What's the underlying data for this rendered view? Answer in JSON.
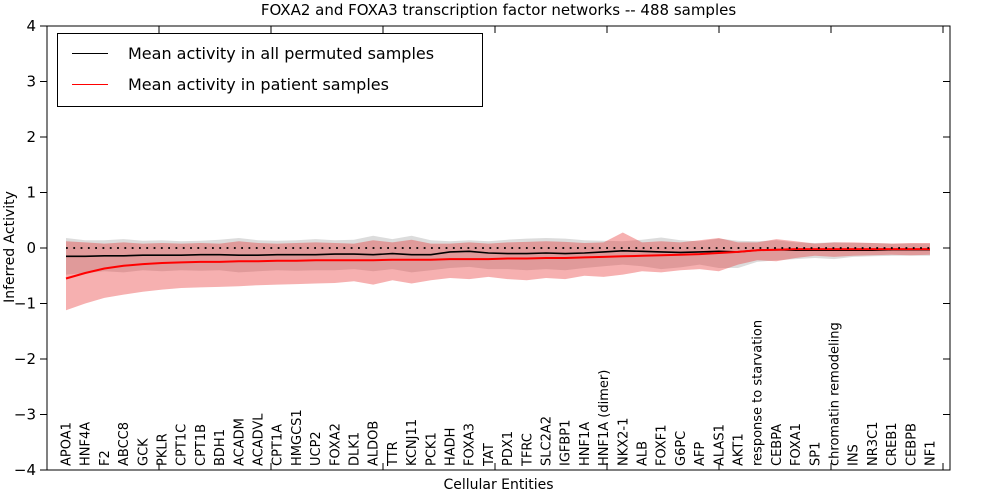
{
  "chart_data": {
    "type": "line",
    "title": "FOXA2 and FOXA3 transcription factor networks -- 488 samples",
    "xlabel": "Cellular Entities",
    "ylabel": "Inferred Activity",
    "ylim": [
      -4,
      4
    ],
    "yticks": [
      4,
      3,
      2,
      1,
      0,
      -1,
      -2,
      -3,
      -4
    ],
    "yticklabels": [
      "4",
      "3",
      "2",
      "1",
      "0",
      "−1",
      "−2",
      "−3",
      "−4"
    ],
    "grid": false,
    "legend_position": "upper left",
    "zero_reference_line": {
      "y": 0,
      "style": "dotted",
      "color": "#000000"
    },
    "categories": [
      "APOA1",
      "HNF4A",
      "F2",
      "ABCC8",
      "GCK",
      "PKLR",
      "CPT1C",
      "CPT1B",
      "BDH1",
      "ACADM",
      "ACADVL",
      "CPT1A",
      "HMGCS1",
      "UCP2",
      "FOXA2",
      "DLK1",
      "ALDOB",
      "TTR",
      "KCNJ11",
      "PCK1",
      "HADH",
      "FOXA3",
      "TAT",
      "PDX1",
      "TFRC",
      "SLC2A2",
      "IGFBP1",
      "HNF1A",
      "HNF1A (dimer)",
      "NKX2-1",
      "ALB",
      "FOXF1",
      "G6PC",
      "AFP",
      "ALAS1",
      "AKT1",
      "response to starvation",
      "CEBPA",
      "FOXA1",
      "SP1",
      "chromatin remodeling",
      "INS",
      "NR3C1",
      "CREB1",
      "CEBPB",
      "NF1"
    ],
    "series": [
      {
        "name": "Mean activity in all permuted samples",
        "color": "#000000",
        "values": [
          -0.15,
          -0.15,
          -0.14,
          -0.14,
          -0.13,
          -0.13,
          -0.13,
          -0.12,
          -0.12,
          -0.13,
          -0.13,
          -0.12,
          -0.12,
          -0.12,
          -0.11,
          -0.11,
          -0.12,
          -0.1,
          -0.12,
          -0.12,
          -0.07,
          -0.06,
          -0.09,
          -0.1,
          -0.1,
          -0.09,
          -0.1,
          -0.09,
          -0.07,
          -0.05,
          -0.06,
          -0.07,
          -0.08,
          -0.07,
          -0.06,
          -0.07,
          -0.04,
          -0.03,
          -0.04,
          -0.04,
          -0.04,
          -0.04,
          -0.04,
          -0.03,
          -0.03,
          -0.03
        ],
        "band_fill": "#9a9a9a",
        "band_opacity": 0.35,
        "band_upper": [
          0.18,
          0.14,
          0.14,
          0.16,
          0.13,
          0.14,
          0.12,
          0.13,
          0.15,
          0.18,
          0.14,
          0.13,
          0.14,
          0.16,
          0.14,
          0.15,
          0.22,
          0.16,
          0.22,
          0.14,
          0.12,
          0.14,
          0.12,
          0.15,
          0.17,
          0.18,
          0.17,
          0.14,
          0.13,
          0.12,
          0.15,
          0.19,
          0.14,
          0.12,
          0.17,
          0.13,
          0.12,
          0.14,
          0.1,
          0.09,
          0.1,
          0.09,
          0.09,
          0.08,
          0.08,
          0.08
        ],
        "band_lower": [
          -0.48,
          -0.45,
          -0.42,
          -0.44,
          -0.4,
          -0.42,
          -0.4,
          -0.41,
          -0.4,
          -0.44,
          -0.42,
          -0.4,
          -0.41,
          -0.4,
          -0.4,
          -0.38,
          -0.42,
          -0.38,
          -0.44,
          -0.4,
          -0.36,
          -0.34,
          -0.38,
          -0.38,
          -0.4,
          -0.38,
          -0.4,
          -0.36,
          -0.33,
          -0.3,
          -0.33,
          -0.38,
          -0.35,
          -0.3,
          -0.36,
          -0.36,
          -0.25,
          -0.22,
          -0.2,
          -0.18,
          -0.2,
          -0.16,
          -0.15,
          -0.14,
          -0.14,
          -0.14
        ]
      },
      {
        "name": "Mean activity in patient samples",
        "color": "#ff0000",
        "values": [
          -0.55,
          -0.45,
          -0.37,
          -0.32,
          -0.29,
          -0.27,
          -0.26,
          -0.25,
          -0.25,
          -0.24,
          -0.24,
          -0.23,
          -0.23,
          -0.22,
          -0.22,
          -0.22,
          -0.22,
          -0.21,
          -0.21,
          -0.21,
          -0.2,
          -0.2,
          -0.2,
          -0.19,
          -0.19,
          -0.18,
          -0.18,
          -0.17,
          -0.16,
          -0.15,
          -0.14,
          -0.13,
          -0.12,
          -0.11,
          -0.09,
          -0.07,
          -0.04,
          -0.03,
          -0.02,
          -0.02,
          -0.02,
          -0.02,
          -0.02,
          -0.02,
          -0.02,
          -0.02
        ],
        "band_fill": "#e83030",
        "band_opacity": 0.38,
        "band_upper": [
          0.12,
          0.1,
          0.08,
          0.1,
          0.08,
          0.09,
          0.08,
          0.09,
          0.08,
          0.12,
          0.09,
          0.08,
          0.09,
          0.1,
          0.09,
          0.08,
          0.14,
          0.1,
          0.15,
          0.08,
          0.08,
          0.1,
          0.08,
          0.1,
          0.11,
          0.12,
          0.11,
          0.09,
          0.1,
          0.28,
          0.1,
          0.12,
          0.1,
          0.14,
          0.18,
          0.1,
          0.1,
          0.16,
          0.12,
          0.08,
          0.1,
          0.1,
          0.09,
          0.08,
          0.09,
          0.09
        ],
        "band_lower": [
          -1.12,
          -1.0,
          -0.9,
          -0.84,
          -0.79,
          -0.75,
          -0.72,
          -0.71,
          -0.7,
          -0.69,
          -0.67,
          -0.66,
          -0.65,
          -0.64,
          -0.63,
          -0.6,
          -0.66,
          -0.58,
          -0.64,
          -0.58,
          -0.54,
          -0.56,
          -0.52,
          -0.56,
          -0.58,
          -0.54,
          -0.56,
          -0.5,
          -0.52,
          -0.48,
          -0.42,
          -0.44,
          -0.4,
          -0.38,
          -0.42,
          -0.3,
          -0.22,
          -0.24,
          -0.18,
          -0.14,
          -0.16,
          -0.14,
          -0.13,
          -0.12,
          -0.13,
          -0.12
        ]
      }
    ]
  }
}
